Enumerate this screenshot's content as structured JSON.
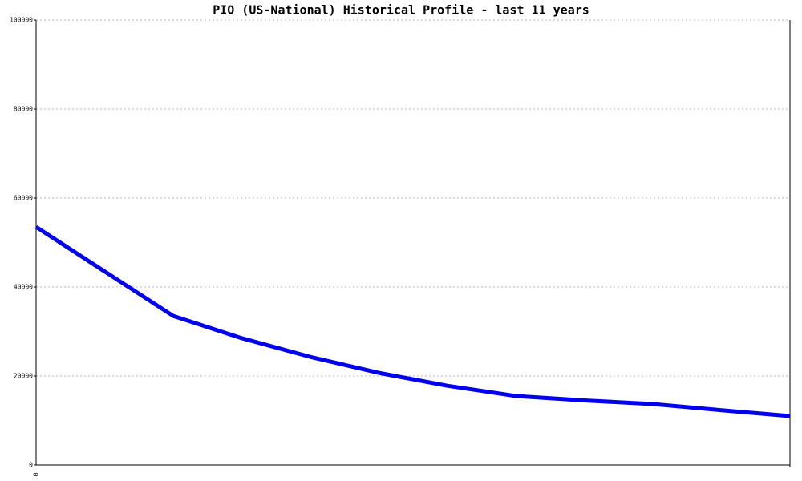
{
  "chart_data": {
    "type": "line",
    "title": "PIO (US-National) Historical Profile - last 11 years",
    "categories": [
      "0",
      null,
      null,
      null,
      null,
      null,
      null,
      null,
      null,
      null,
      null,
      null
    ],
    "series": [
      {
        "name": "PIO",
        "color": "#0000ee",
        "values": [
          53500,
          43500,
          33500,
          28500,
          24300,
          20700,
          17800,
          15500,
          14500,
          13700,
          12300,
          11000
        ]
      }
    ],
    "ylim": [
      0,
      100000
    ],
    "yticks": [
      0,
      20000,
      40000,
      60000,
      80000,
      100000
    ],
    "grid": true
  }
}
